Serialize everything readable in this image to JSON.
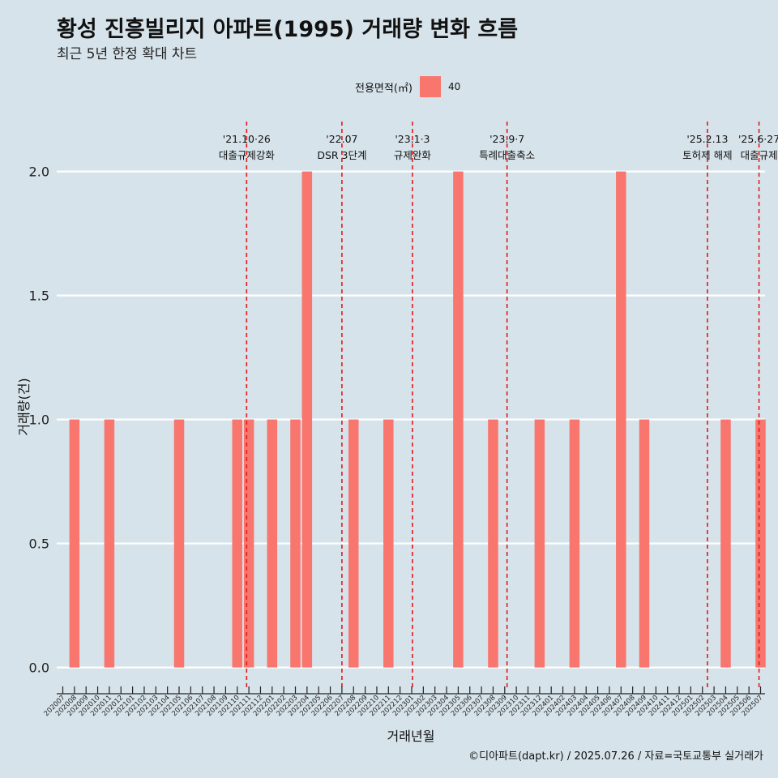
{
  "title": "황성 진흥빌리지 아파트(1995) 거래량 변화 흐름",
  "subtitle": "최근 5년 한정 확대 차트",
  "legend": {
    "title": "전용면적(㎡)",
    "items": [
      {
        "label": "40",
        "color": "#F8766D"
      }
    ]
  },
  "caption": "©디아파트(dapt.kr) / 2025.07.26 / 자료=국토교통부 실거래가",
  "chart_data": {
    "type": "bar",
    "xlabel": "거래년월",
    "ylabel": "거래량(건)",
    "ylim": [
      0,
      2
    ],
    "yticks": [
      0.0,
      0.5,
      1.0,
      1.5,
      2.0
    ],
    "grid": true,
    "legend_position": "top",
    "bar_color": "#F8766D",
    "categories": [
      "202007",
      "202008",
      "202009",
      "202010",
      "202011",
      "202012",
      "202101",
      "202102",
      "202103",
      "202104",
      "202105",
      "202106",
      "202107",
      "202108",
      "202109",
      "202110",
      "202111",
      "202112",
      "202201",
      "202202",
      "202203",
      "202204",
      "202205",
      "202206",
      "202207",
      "202208",
      "202209",
      "202210",
      "202211",
      "202212",
      "202301",
      "202302",
      "202303",
      "202304",
      "202305",
      "202306",
      "202307",
      "202308",
      "202309",
      "202310",
      "202311",
      "202312",
      "202401",
      "202402",
      "202403",
      "202404",
      "202405",
      "202406",
      "202407",
      "202408",
      "202409",
      "202410",
      "202411",
      "202412",
      "202501",
      "202502",
      "202503",
      "202504",
      "202505",
      "202506",
      "202507"
    ],
    "series": [
      {
        "name": "40",
        "points": [
          {
            "x": "202008",
            "y": 1
          },
          {
            "x": "202011",
            "y": 1
          },
          {
            "x": "202105",
            "y": 1
          },
          {
            "x": "202110",
            "y": 1
          },
          {
            "x": "202111",
            "y": 1
          },
          {
            "x": "202201",
            "y": 1
          },
          {
            "x": "202203",
            "y": 1
          },
          {
            "x": "202204",
            "y": 2
          },
          {
            "x": "202208",
            "y": 1
          },
          {
            "x": "202211",
            "y": 1
          },
          {
            "x": "202305",
            "y": 2
          },
          {
            "x": "202308",
            "y": 1
          },
          {
            "x": "202312",
            "y": 1
          },
          {
            "x": "202403",
            "y": 1
          },
          {
            "x": "202407",
            "y": 2
          },
          {
            "x": "202409",
            "y": 1
          },
          {
            "x": "202504",
            "y": 1
          },
          {
            "x": "202507",
            "y": 1
          }
        ]
      }
    ],
    "annotations": [
      {
        "x": "2021-10-26",
        "line1": "'21.10·26",
        "line2": "대출규제강화"
      },
      {
        "x": "2022-07-01",
        "line1": "'22.07",
        "line2": "DSR 3단계"
      },
      {
        "x": "2023-01-03",
        "line1": "'23.1·3",
        "line2": "규제완화"
      },
      {
        "x": "2023-09-07",
        "line1": "'23.9·7",
        "line2": "특례대출축소"
      },
      {
        "x": "2025-02-13",
        "line1": "'25.2.13",
        "line2": "토허제 해제"
      },
      {
        "x": "2025-06-27",
        "line1": "'25.6·27",
        "line2": "대출규제"
      }
    ]
  }
}
